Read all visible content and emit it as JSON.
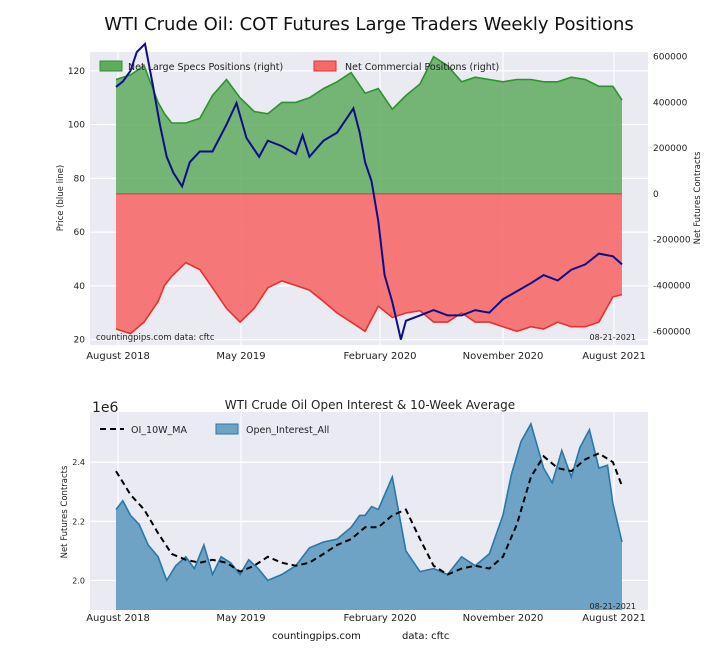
{
  "title": "WTI Crude Oil: COT Futures Large Traders Weekly Positions",
  "footer": {
    "site": "countingpips.com",
    "data": "data: cftc"
  },
  "colors": {
    "background": "#eaeaf2",
    "grid": "#ffffff",
    "specs_fill": "#5fac5f",
    "specs_line": "#2e922e",
    "comm_fill": "#f76a6a",
    "comm_line": "#e83030",
    "price_line": "#0d0d8a",
    "oi_fill": "#6fa3c6",
    "oi_line": "#2a78a8"
  },
  "chart_data": [
    {
      "type": "area",
      "title": "",
      "xlabel": "",
      "ylabel": "Price (blue line)",
      "ylabel_right": "Net Futures Contracts",
      "x_ticks": [
        "August 2018",
        "May 2019",
        "February 2020",
        "November 2020",
        "August 2021"
      ],
      "x_start": "2018-07-31",
      "x_end": "2021-08-21",
      "ylim": [
        18,
        127
      ],
      "y_ticks": [
        20,
        40,
        60,
        80,
        100,
        120
      ],
      "ylim_right": [
        -660000,
        620000
      ],
      "y_ticks_right": [
        -600000,
        -400000,
        -200000,
        0,
        200000,
        400000,
        600000
      ],
      "y_tick_labels_right": [
        "-600000",
        "-400000",
        "-200000",
        "0",
        "200000",
        "400000",
        "600000"
      ],
      "legend": [
        "Net Large Specs Positions (right)",
        "Net Commercial Positions (right)"
      ],
      "legend_position": "top-left",
      "source_note": "countingpips.com   data: cftc",
      "date_note": "08-21-2021",
      "series": [
        {
          "name": "Net Large Specs Positions (right)",
          "x": [
            "2018-07-31",
            "2018-09-01",
            "2018-10-01",
            "2018-11-01",
            "2018-11-15",
            "2018-12-01",
            "2019-01-01",
            "2019-02-01",
            "2019-03-01",
            "2019-04-01",
            "2019-05-01",
            "2019-06-01",
            "2019-07-01",
            "2019-08-01",
            "2019-09-01",
            "2019-10-01",
            "2019-11-01",
            "2019-12-01",
            "2020-01-01",
            "2020-02-01",
            "2020-03-01",
            "2020-04-01",
            "2020-05-01",
            "2020-06-01",
            "2020-07-01",
            "2020-08-01",
            "2020-09-01",
            "2020-10-01",
            "2020-11-01",
            "2020-12-01",
            "2021-01-01",
            "2021-02-01",
            "2021-03-01",
            "2021-04-01",
            "2021-05-01",
            "2021-06-01",
            "2021-07-01",
            "2021-08-01",
            "2021-08-21"
          ],
          "values": [
            500000,
            520000,
            560000,
            400000,
            350000,
            310000,
            310000,
            330000,
            430000,
            500000,
            420000,
            360000,
            350000,
            400000,
            400000,
            420000,
            460000,
            490000,
            530000,
            440000,
            460000,
            370000,
            430000,
            480000,
            600000,
            560000,
            490000,
            510000,
            500000,
            490000,
            500000,
            500000,
            490000,
            490000,
            510000,
            500000,
            470000,
            470000,
            410000
          ]
        },
        {
          "name": "Net Commercial Positions (right)",
          "x": [
            "2018-07-31",
            "2018-09-01",
            "2018-10-01",
            "2018-11-01",
            "2018-11-15",
            "2018-12-01",
            "2019-01-01",
            "2019-02-01",
            "2019-03-01",
            "2019-04-01",
            "2019-05-01",
            "2019-06-01",
            "2019-07-01",
            "2019-08-01",
            "2019-09-01",
            "2019-10-01",
            "2019-11-01",
            "2019-12-01",
            "2020-01-01",
            "2020-02-01",
            "2020-03-01",
            "2020-04-01",
            "2020-05-01",
            "2020-06-01",
            "2020-07-01",
            "2020-08-01",
            "2020-09-01",
            "2020-10-01",
            "2020-11-01",
            "2020-12-01",
            "2021-01-01",
            "2021-02-01",
            "2021-03-01",
            "2021-04-01",
            "2021-05-01",
            "2021-06-01",
            "2021-07-01",
            "2021-08-01",
            "2021-08-21"
          ],
          "values": [
            -590000,
            -610000,
            -560000,
            -470000,
            -400000,
            -360000,
            -300000,
            -330000,
            -410000,
            -500000,
            -560000,
            -500000,
            -410000,
            -380000,
            -400000,
            -420000,
            -470000,
            -520000,
            -560000,
            -600000,
            -490000,
            -540000,
            -520000,
            -510000,
            -560000,
            -560000,
            -520000,
            -560000,
            -560000,
            -580000,
            -600000,
            -580000,
            -590000,
            -560000,
            -580000,
            -580000,
            -560000,
            -450000,
            -440000
          ]
        },
        {
          "name": "Price (blue line)",
          "x": [
            "2018-07-31",
            "2018-08-15",
            "2018-09-01",
            "2018-09-15",
            "2018-10-03",
            "2018-10-20",
            "2018-11-05",
            "2018-11-20",
            "2018-12-05",
            "2018-12-24",
            "2019-01-10",
            "2019-02-01",
            "2019-03-01",
            "2019-04-01",
            "2019-04-23",
            "2019-05-15",
            "2019-06-12",
            "2019-07-01",
            "2019-08-01",
            "2019-09-01",
            "2019-09-16",
            "2019-10-01",
            "2019-11-01",
            "2019-12-01",
            "2020-01-06",
            "2020-01-20",
            "2020-02-01",
            "2020-02-15",
            "2020-03-01",
            "2020-03-15",
            "2020-04-01",
            "2020-04-20",
            "2020-05-01",
            "2020-06-01",
            "2020-07-01",
            "2020-08-01",
            "2020-09-01",
            "2020-10-01",
            "2020-11-01",
            "2020-12-01",
            "2021-01-01",
            "2021-02-01",
            "2021-03-01",
            "2021-04-01",
            "2021-05-01",
            "2021-06-01",
            "2021-07-01",
            "2021-08-01",
            "2021-08-21"
          ],
          "values": [
            114,
            116,
            120,
            127,
            130,
            115,
            100,
            88,
            82,
            77,
            86,
            90,
            90,
            100,
            108,
            95,
            88,
            94,
            92,
            89,
            96,
            88,
            94,
            97,
            106,
            97,
            86,
            79,
            64,
            44,
            34,
            20,
            27,
            29,
            31,
            29,
            29,
            31,
            30,
            35,
            38,
            41,
            44,
            42,
            46,
            48,
            52,
            51,
            48
          ]
        }
      ]
    },
    {
      "type": "area",
      "title": "WTI Crude Oil Open Interest & 10-Week Average",
      "xlabel": "",
      "ylabel": "Net Futures Contracts",
      "y_scale_label": "1e6",
      "x_ticks": [
        "August 2018",
        "May 2019",
        "February 2020",
        "November 2020",
        "August 2021"
      ],
      "x_start": "2018-07-31",
      "x_end": "2021-08-21",
      "ylim": [
        1.9,
        2.57
      ],
      "y_ticks": [
        2.0,
        2.2,
        2.4
      ],
      "y_tick_labels": [
        "2.0",
        "2.2",
        "2.4"
      ],
      "legend": [
        "OI_10W_MA",
        "Open_Interest_All"
      ],
      "legend_position": "top-left",
      "date_note": "08-21-2021",
      "series": [
        {
          "name": "Open_Interest_All",
          "x": [
            "2018-07-31",
            "2018-08-15",
            "2018-09-01",
            "2018-09-20",
            "2018-10-10",
            "2018-11-01",
            "2018-11-20",
            "2018-12-10",
            "2019-01-01",
            "2019-01-20",
            "2019-02-10",
            "2019-03-01",
            "2019-03-20",
            "2019-04-10",
            "2019-05-01",
            "2019-05-20",
            "2019-06-10",
            "2019-07-01",
            "2019-08-01",
            "2019-09-01",
            "2019-10-01",
            "2019-11-01",
            "2019-12-01",
            "2020-01-01",
            "2020-01-20",
            "2020-02-01",
            "2020-02-15",
            "2020-03-01",
            "2020-04-01",
            "2020-05-01",
            "2020-06-01",
            "2020-07-01",
            "2020-08-01",
            "2020-09-01",
            "2020-10-01",
            "2020-11-01",
            "2020-12-01",
            "2020-12-20",
            "2021-01-10",
            "2021-02-01",
            "2021-03-01",
            "2021-03-20",
            "2021-04-10",
            "2021-05-01",
            "2021-05-20",
            "2021-06-10",
            "2021-07-01",
            "2021-07-20",
            "2021-08-01",
            "2021-08-21"
          ],
          "values": [
            2.24,
            2.27,
            2.22,
            2.19,
            2.12,
            2.08,
            2.0,
            2.05,
            2.08,
            2.04,
            2.12,
            2.02,
            2.08,
            2.06,
            2.02,
            2.07,
            2.04,
            2.0,
            2.02,
            2.05,
            2.11,
            2.13,
            2.14,
            2.18,
            2.22,
            2.22,
            2.25,
            2.24,
            2.35,
            2.1,
            2.03,
            2.04,
            2.02,
            2.08,
            2.05,
            2.09,
            2.22,
            2.36,
            2.47,
            2.53,
            2.38,
            2.33,
            2.44,
            2.35,
            2.45,
            2.51,
            2.38,
            2.39,
            2.26,
            2.13
          ]
        },
        {
          "name": "OI_10W_MA",
          "x": [
            "2018-07-31",
            "2018-09-01",
            "2018-10-01",
            "2018-11-01",
            "2018-12-01",
            "2019-01-01",
            "2019-02-01",
            "2019-03-01",
            "2019-04-01",
            "2019-05-01",
            "2019-06-01",
            "2019-07-01",
            "2019-08-01",
            "2019-09-01",
            "2019-10-01",
            "2019-11-01",
            "2019-12-01",
            "2020-01-01",
            "2020-02-01",
            "2020-03-01",
            "2020-04-01",
            "2020-05-01",
            "2020-06-01",
            "2020-07-01",
            "2020-08-01",
            "2020-09-01",
            "2020-10-01",
            "2020-11-01",
            "2020-12-01",
            "2021-01-01",
            "2021-02-01",
            "2021-03-01",
            "2021-04-01",
            "2021-05-01",
            "2021-06-01",
            "2021-07-01",
            "2021-08-01",
            "2021-08-21"
          ],
          "values": [
            2.37,
            2.29,
            2.24,
            2.16,
            2.09,
            2.07,
            2.06,
            2.07,
            2.06,
            2.03,
            2.05,
            2.08,
            2.06,
            2.05,
            2.06,
            2.09,
            2.12,
            2.14,
            2.18,
            2.18,
            2.22,
            2.24,
            2.14,
            2.05,
            2.02,
            2.04,
            2.05,
            2.04,
            2.08,
            2.19,
            2.35,
            2.42,
            2.38,
            2.37,
            2.41,
            2.43,
            2.4,
            2.32
          ]
        }
      ]
    }
  ]
}
